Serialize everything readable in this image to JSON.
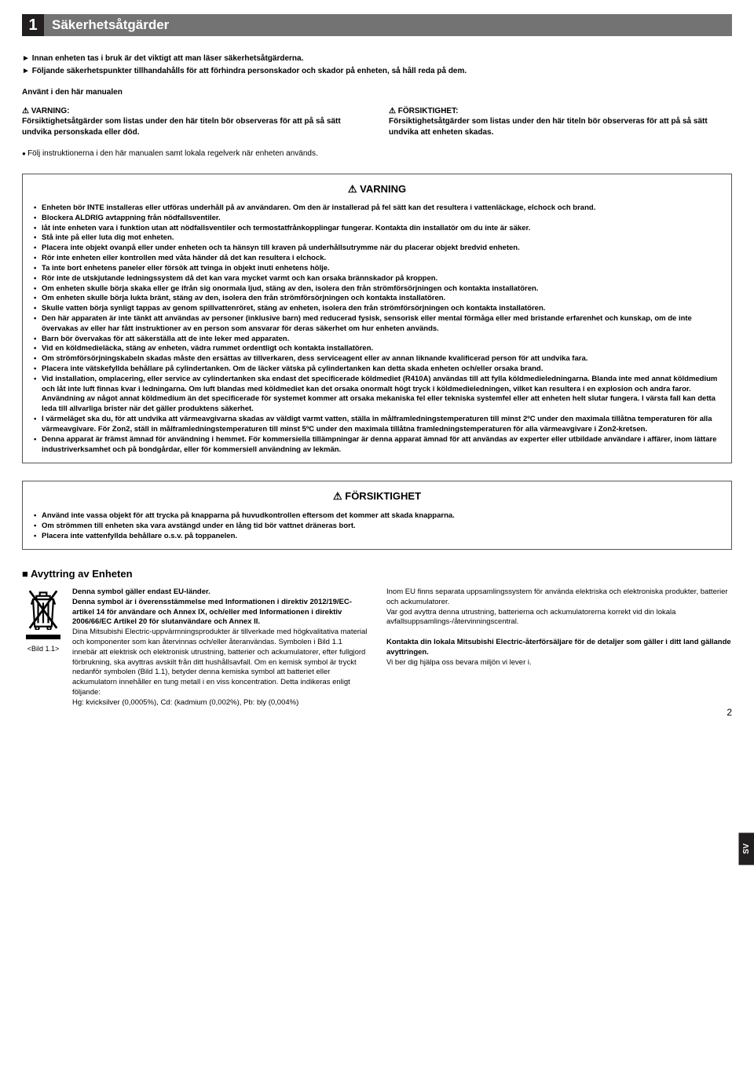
{
  "header": {
    "number": "1",
    "title": "Säkerhetsåtgärder"
  },
  "intro": {
    "line1": "Innan enheten tas i bruk är det viktigt att man läser säkerhetsåtgärderna.",
    "line2": "Följande säkerhetspunkter tillhandahålls för att förhindra personskador och skador på enheten, så håll reda på dem."
  },
  "manualUsed": "Använt i den här manualen",
  "warnCol": {
    "label": "VARNING:",
    "body": "Försiktighetsåtgärder som listas under den här titeln bör observeras för att på så sätt undvika personskada eller död."
  },
  "cautionCol": {
    "label": "FÖRSIKTIGHET:",
    "body": "Försiktighetsåtgärder som listas under den här titeln bör observeras för att på så sätt undvika att enheten skadas."
  },
  "followLine": "Följ instruktionerna i den här manualen samt lokala regelverk när enheten används.",
  "warningBox": {
    "title": "VARNING",
    "items": [
      "Enheten bör INTE installeras eller utföras underhåll på av användaren. Om den är installerad på fel sätt kan det resultera i vattenläckage, elchock och brand.",
      "Blockera ALDRIG avtappning från nödfallsventiler.",
      "låt inte enheten vara i funktion utan att nödfallsventiler och termostatfrånkopplingar fungerar. Kontakta din installatör om du inte är säker.",
      "Stå inte på eller luta dig mot enheten.",
      "Placera inte objekt ovanpå eller under enheten och ta hänsyn till kraven på underhållsutrymme när du placerar objekt bredvid enheten.",
      "Rör inte enheten eller kontrollen med våta händer då det kan resultera i elchock.",
      "Ta inte bort enhetens paneler eller försök att tvinga in objekt inuti enhetens hölje.",
      "Rör inte de utskjutande ledningssystem då det kan vara mycket varmt och kan orsaka brännskador på kroppen.",
      "Om enheten skulle börja skaka eller ge ifrån sig onormala ljud, stäng av den, isolera den från strömförsörjningen och kontakta installatören.",
      "Om enheten skulle börja lukta bränt, stäng av den, isolera den från strömförsörjningen och kontakta installatören.",
      "Skulle vatten börja synligt tappas av genom spillvattenröret, stäng av enheten, isolera den från strömförsörjningen och kontakta installatören.",
      "Den här apparaten är inte tänkt att användas av personer (inklusive barn) med reducerad fysisk, sensorisk eller mental förmåga eller med bristande erfarenhet och kunskap, om de inte övervakas av eller har fått instruktioner av en person som ansvarar för deras säkerhet om hur enheten används.",
      "Barn bör övervakas för att säkerställa att de inte leker med apparaten.",
      "Vid en köldmedieläcka, stäng av enheten, vädra rummet ordentligt och kontakta installatören.",
      "Om strömförsörjningskabeln skadas måste den ersättas av tillverkaren, dess serviceagent eller av annan liknande kvalificerad person för att undvika fara.",
      "Placera inte vätskefyllda behållare på cylindertanken. Om de läcker vätska på cylindertanken kan detta skada enheten och/eller orsaka brand.",
      "Vid installation, omplacering, eller service av cylindertanken ska endast det specificerade köldmediet (R410A) användas till att fylla köldmedieledningarna. Blanda inte med annat köldmedium och låt inte luft finnas kvar i ledningarna. Om luft blandas med köldmediet kan det orsaka onormalt högt tryck i köldmedieledningen, vilket kan resultera i en explosion och andra faror. Användning av något annat köldmedium än det specificerade för systemet kommer att orsaka mekaniska fel eller tekniska systemfel eller att enheten helt slutar fungera. I värsta fall kan detta leda till allvarliga brister när det gäller produktens säkerhet.",
      "I värmeläget ska du, för att undvika att värmeavgivarna skadas av väldigt varmt vatten, ställa in målframledningstemperaturen till minst 2ºC under den maximala tillåtna temperaturen för alla värmeavgivare. För Zon2, ställ in målframledningstemperaturen till minst 5ºC under den maximala tillåtna framledningstemperaturen för alla värmeavgivare i Zon2-kretsen.",
      "Denna apparat är främst ämnad för användning i hemmet. För kommersiella tillämpningar är denna apparat ämnad för att användas av experter eller utbildade användare i affärer, inom lättare industriverksamhet och på bondgårdar, eller för kommersiell användning av lekmän."
    ]
  },
  "cautionBox": {
    "title": "FÖRSIKTIGHET",
    "items": [
      "Använd inte vassa objekt för att trycka på knapparna på huvudkontrollen eftersom det kommer att skada knapparna.",
      "Om strömmen till enheten ska vara avstängd under en lång tid bör vattnet dräneras bort.",
      "Placera inte vattenfyllda behållare o.s.v. på toppanelen."
    ]
  },
  "disposal": {
    "heading": "Avyttring av Enheten",
    "imgLabel": "<Bild 1.1>",
    "left": {
      "p1b": "Denna symbol gäller endast EU-länder.",
      "p2b": "Denna symbol är i överensstämmelse med Informationen i direktiv 2012/19/EC-artikel 14 för användare och Annex IX, och/eller med Informationen i direktiv 2006/66/EC Artikel 20 för slutanvändare och Annex II.",
      "p3": "Dina Mitsubishi Electric-uppvärmningsprodukter är tillverkade med högkvalitativa material och komponenter som kan återvinnas och/eller återanvändas. Symbolen i Bild 1.1 innebär att elektrisk och elektronisk utrustning, batterier och ackumulatorer, efter fullgjord förbrukning, ska avyttras avskilt från ditt hushållsavfall. Om en kemisk symbol är tryckt nedanför symbolen (Bild 1.1), betyder denna kemiska symbol att batteriet eller ackumulatorn innehåller en tung metall i en viss koncentration. Detta indikeras enligt följande:",
      "p4": "Hg: kvicksilver (0,0005%), Cd: (kadmium (0,002%), Pb: bly (0,004%)"
    },
    "right": {
      "p1": "Inom EU finns separata uppsamlingssystem för använda elektriska och elektroniska produkter, batterier och ackumulatorer.",
      "p2": "Var god avyttra denna utrustning, batterierna och ackumulatorerna korrekt vid din lokala avfallsuppsamlings-/återvinningscentral.",
      "p3b": "Kontakta din lokala Mitsubishi Electric-återförsäljare för de detaljer som gäller i ditt land gällande avyttringen.",
      "p4": "Vi ber dig hjälpa oss bevara miljön vi lever i."
    }
  },
  "sideTab": "SV",
  "pageNum": "2"
}
